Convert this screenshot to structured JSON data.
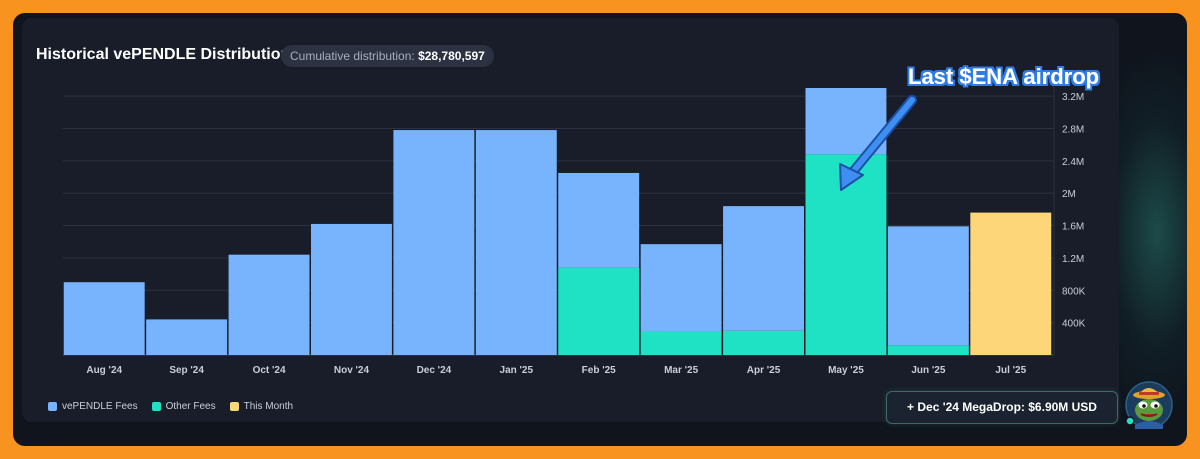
{
  "card": {
    "title": "Historical vePENDLE Distribution",
    "cumulative_label": "Cumulative distribution:",
    "cumulative_value": "$28,780,597"
  },
  "annotation": {
    "text": "Last $ENA airdrop",
    "color": "#ffffff",
    "arrow_color": "#3f8ff0"
  },
  "legend": [
    {
      "label": "vePENDLE Fees",
      "color": "#78b4fd"
    },
    {
      "label": "Other Fees",
      "color": "#1ee2c3"
    },
    {
      "label": "This Month",
      "color": "#fed67a"
    }
  ],
  "megadrop": {
    "label": "+ Dec '24 MegaDrop: $6.90M USD"
  },
  "colors": {
    "page_bg": "#f7931e",
    "frame_bg": "#0f141d",
    "card_bg": "#181d29",
    "grid": "#2a3140"
  },
  "chart_data": {
    "type": "bar",
    "stacked": true,
    "categories": [
      "Aug '24",
      "Sep '24",
      "Oct '24",
      "Nov '24",
      "Dec '24",
      "Jan '25",
      "Feb '25",
      "Mar '25",
      "Apr '25",
      "May '25",
      "Jun '25",
      "Jul '25"
    ],
    "series": [
      {
        "name": "Other Fees",
        "color": "#1ee2c3",
        "values": [
          0,
          0,
          0,
          0,
          0,
          0,
          1080000,
          290000,
          300000,
          2480000,
          120000,
          0
        ]
      },
      {
        "name": "vePENDLE Fees",
        "color": "#78b4fd",
        "values": [
          900000,
          440000,
          1240000,
          1620000,
          2780000,
          2780000,
          1170000,
          1080000,
          1540000,
          820000,
          1470000,
          0
        ]
      },
      {
        "name": "This Month",
        "color": "#fed67a",
        "values": [
          0,
          0,
          0,
          0,
          0,
          0,
          0,
          0,
          0,
          0,
          0,
          1760000
        ]
      }
    ],
    "y_ticks": [
      400000,
      800000,
      1200000,
      1600000,
      2000000,
      2400000,
      2800000,
      3200000
    ],
    "y_tick_labels": [
      "400K",
      "800K",
      "1.2M",
      "1.6M",
      "2M",
      "2.4M",
      "2.8M",
      "3.2M"
    ],
    "ylim": [
      0,
      3300000
    ],
    "y_axis_side": "right",
    "grid": true,
    "legend_position": "bottom-left"
  }
}
